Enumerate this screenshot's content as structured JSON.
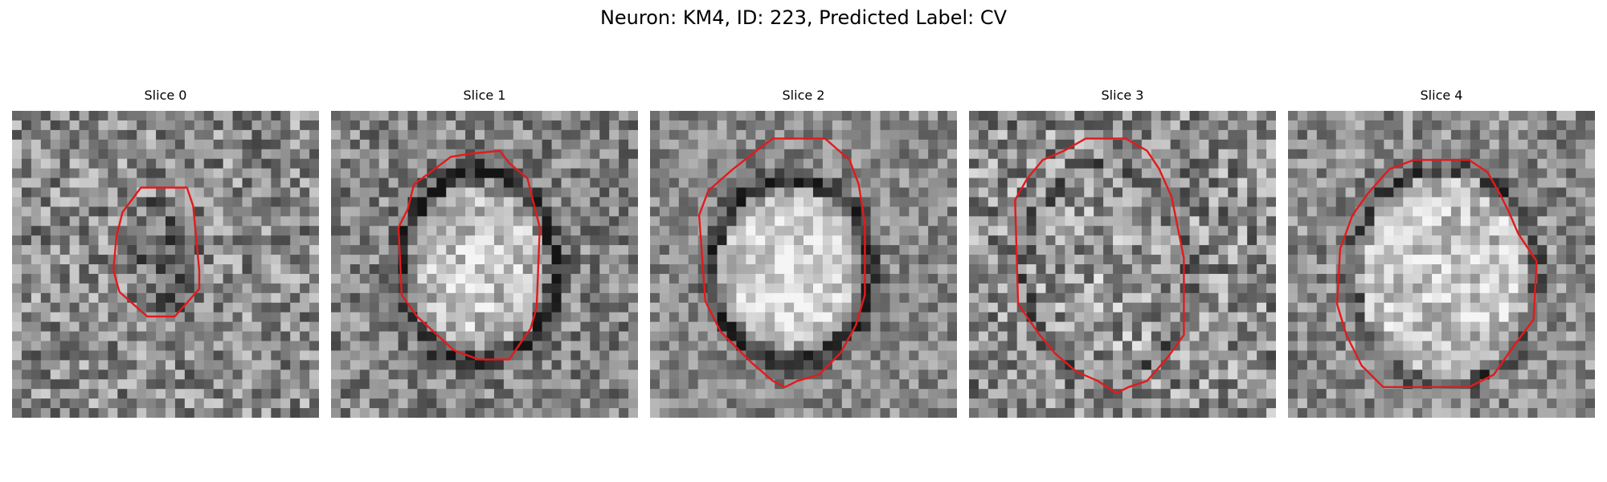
{
  "title": "Neuron: KM4, ID: 223, Predicted Label: CV",
  "outline_color": "#e31a1c",
  "colormap": "grayscale",
  "slices": [
    {
      "title": "Slice 0"
    },
    {
      "title": "Slice 1"
    },
    {
      "title": "Slice 2"
    },
    {
      "title": "Slice 3"
    },
    {
      "title": "Slice 4"
    }
  ]
}
